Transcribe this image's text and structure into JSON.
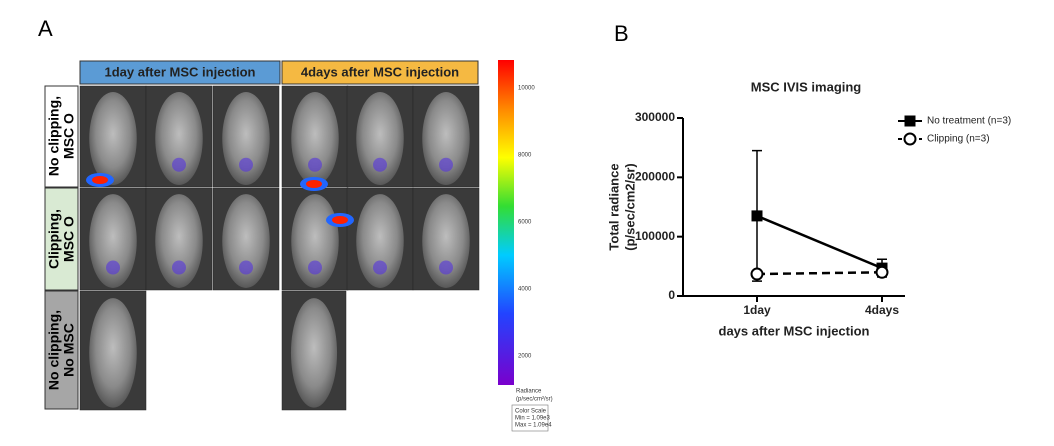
{
  "panel_labels": [
    "A",
    "B"
  ],
  "panel_a": {
    "column_headers": [
      "1day after MSC injection",
      "4days after MSC injection"
    ],
    "row_labels": [
      [
        "No clipping,",
        "MSC O"
      ],
      [
        "Clipping,",
        "MSC O"
      ],
      [
        "No clipping,",
        "No MSC"
      ]
    ],
    "colorbar_ticks": [
      10000,
      8000,
      6000,
      4000,
      2000
    ],
    "colorbar_label": [
      "Radiance",
      "(p/sec/cm²/sr)"
    ],
    "color_scale": [
      "Color Scale",
      "Min = 1.09e3",
      "Max = 1.09e4"
    ]
  },
  "chart_data": {
    "type": "line",
    "title": "MSC IVIS imaging",
    "categories": [
      "1day",
      "4days"
    ],
    "xlabel": "days after MSC injection",
    "ylabel": [
      "Total radiance",
      "(p/sec/cm2/sr)"
    ],
    "ylim": [
      0,
      300000
    ],
    "yticks": [
      0,
      100000,
      200000,
      300000
    ],
    "legend": "upper right",
    "series": [
      {
        "name": "No treatment (n=3)",
        "color": "#000000",
        "linestyle": "solid",
        "marker": "square",
        "filled": true,
        "values": [
          135000,
          47000
        ],
        "errors": [
          110000,
          15000
        ]
      },
      {
        "name": "Clipping (n=3)",
        "color": "#000000",
        "linestyle": "dashed",
        "marker": "circle",
        "filled": false,
        "values": [
          37000,
          40000
        ],
        "errors": [
          5000,
          6000
        ]
      }
    ]
  }
}
